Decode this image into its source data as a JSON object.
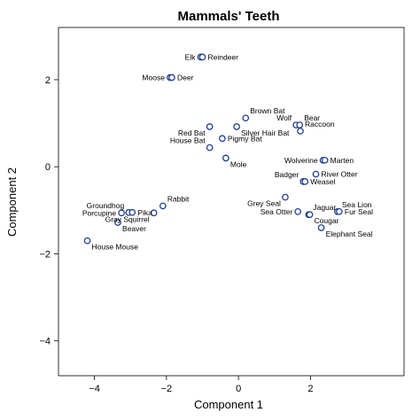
{
  "chart_data": {
    "type": "scatter",
    "title": "Mammals' Teeth",
    "xlabel": "Component 1",
    "ylabel": "Component 2",
    "xlim": [
      -5.0,
      4.6
    ],
    "ylim": [
      -4.8,
      3.2
    ],
    "xticks": [
      -4,
      -2,
      0,
      2
    ],
    "yticks": [
      -4,
      -2,
      0,
      2
    ],
    "grid": false,
    "point_color": "#1f3f8f",
    "points": [
      {
        "name": "Elk",
        "x": -1.05,
        "y": 2.52,
        "label_side": "left"
      },
      {
        "name": "Reindeer",
        "x": -1.0,
        "y": 2.52,
        "label_side": "right"
      },
      {
        "name": "Moose",
        "x": -1.9,
        "y": 2.05,
        "label_side": "left"
      },
      {
        "name": "Deer",
        "x": -1.85,
        "y": 2.05,
        "label_side": "right"
      },
      {
        "name": "Brown Bat",
        "x": 0.2,
        "y": 1.12,
        "label_side": "upper-right"
      },
      {
        "name": "Wolf",
        "x": 1.6,
        "y": 0.96,
        "label_side": "upper-left"
      },
      {
        "name": "Bear",
        "x": 1.7,
        "y": 0.96,
        "label_side": "upper-right"
      },
      {
        "name": "Raccoon",
        "x": 1.72,
        "y": 0.82,
        "label_side": "upper-right"
      },
      {
        "name": "Silver Hair Bat",
        "x": -0.05,
        "y": 0.92,
        "label_side": "lower-right"
      },
      {
        "name": "Red Bat",
        "x": -0.8,
        "y": 0.92,
        "label_side": "lower-left"
      },
      {
        "name": "Pigmy Bat",
        "x": -0.45,
        "y": 0.65,
        "label_side": "right"
      },
      {
        "name": "House Bat",
        "x": -0.8,
        "y": 0.44,
        "label_side": "upper-left"
      },
      {
        "name": "Mole",
        "x": -0.35,
        "y": 0.2,
        "label_side": "lower-right"
      },
      {
        "name": "Wolverine",
        "x": 2.35,
        "y": 0.15,
        "label_side": "left"
      },
      {
        "name": "Marten",
        "x": 2.4,
        "y": 0.15,
        "label_side": "right"
      },
      {
        "name": "River Otter",
        "x": 2.15,
        "y": -0.17,
        "label_side": "right"
      },
      {
        "name": "Badger",
        "x": 1.8,
        "y": -0.34,
        "label_side": "upper-left"
      },
      {
        "name": "Weasel",
        "x": 1.85,
        "y": -0.34,
        "label_side": "right"
      },
      {
        "name": "Grey Seal",
        "x": 1.3,
        "y": -0.7,
        "label_side": "lower-left"
      },
      {
        "name": "Sea Otter",
        "x": 1.65,
        "y": -1.03,
        "label_side": "left"
      },
      {
        "name": "Jaguar",
        "x": 1.95,
        "y": -1.1,
        "label_side": "upper-right"
      },
      {
        "name": "Cougar",
        "x": 1.98,
        "y": -1.1,
        "label_side": "lower-right"
      },
      {
        "name": "Sea Lion",
        "x": 2.75,
        "y": -1.03,
        "label_side": "upper-right"
      },
      {
        "name": "Fur Seal",
        "x": 2.8,
        "y": -1.03,
        "label_side": "right"
      },
      {
        "name": "Elephant Seal",
        "x": 2.3,
        "y": -1.4,
        "label_side": "lower-right"
      },
      {
        "name": "Rabbit",
        "x": -2.1,
        "y": -0.9,
        "label_side": "upper-right"
      },
      {
        "name": "Groundhog",
        "x": -3.05,
        "y": -1.05,
        "label_side": "upper-left"
      },
      {
        "name": "Pika",
        "x": -2.95,
        "y": -1.05,
        "label_side": "right"
      },
      {
        "name": "Porcupine",
        "x": -3.25,
        "y": -1.06,
        "label_side": "left"
      },
      {
        "name": "Beaver",
        "x": -3.35,
        "y": -1.28,
        "label_side": "lower-right"
      },
      {
        "name": "Gray Squirrel",
        "x": -2.35,
        "y": -1.06,
        "label_side": "lower-left"
      },
      {
        "name": "House Mouse",
        "x": -4.2,
        "y": -1.7,
        "label_side": "lower-right"
      }
    ]
  }
}
